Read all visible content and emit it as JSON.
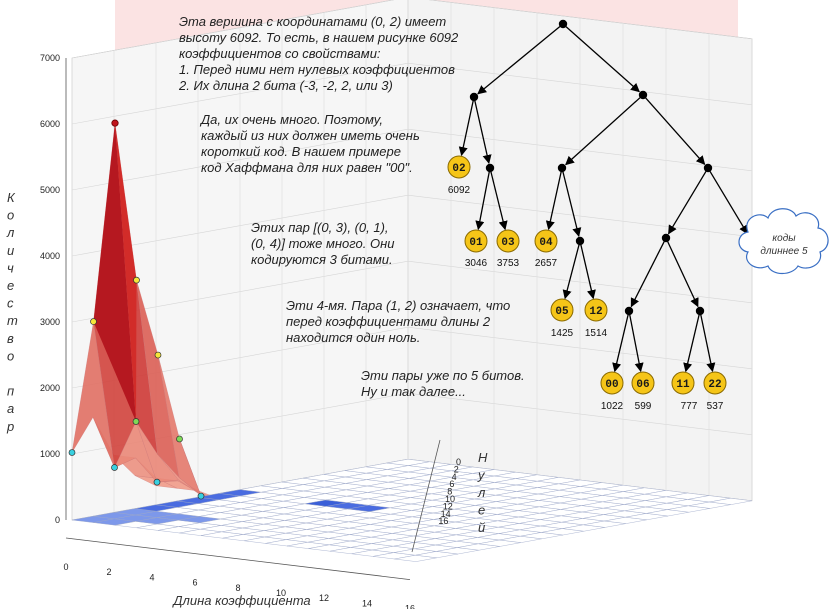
{
  "annotations": {
    "vertex": {
      "lines": [
        "Эта вершина с координатами (0, 2) имеет",
        "высоту 6092. То есть, в нашем рисунке 6092",
        "коэффициентов со свойствами:",
        "1. Перед ними нет нулевых коэффициентов",
        "2. Их длина 2 бита (-3, -2, 2, или 3)"
      ]
    },
    "many": {
      "lines": [
        "Да,   их   очень   много.   Поэтому,",
        "каждый из них должен иметь очень",
        "короткий  код.  В  нашем  примере",
        "код Хаффмана для них равен \"00\"."
      ]
    },
    "pairs": {
      "lines": [
        "Этих   пар  [(0,  3),  (0,  1),",
        "(0,  4)]  тоже  много.  Они",
        "кодируются 3 битами."
      ]
    },
    "four": {
      "lines": [
        "Эти 4-мя. Пара (1, 2) означает, что",
        "перед   коэффициентами   длины   2",
        "находится один ноль."
      ]
    },
    "five": {
      "lines": [
        "Эти пары уже по 5 битов.",
        "Ну и так далее..."
      ]
    }
  },
  "tree": {
    "leaves": [
      {
        "code": "02",
        "count": "6092"
      },
      {
        "code": "01",
        "count": "3046"
      },
      {
        "code": "03",
        "count": "3753"
      },
      {
        "code": "04",
        "count": "2657"
      },
      {
        "code": "05",
        "count": "1425"
      },
      {
        "code": "12",
        "count": "1514"
      },
      {
        "code": "00",
        "count": "1022"
      },
      {
        "code": "06",
        "count": "599"
      },
      {
        "code": "11",
        "count": "777"
      },
      {
        "code": "22",
        "count": "537"
      }
    ],
    "cloud": [
      "коды",
      "длиннее 5"
    ],
    "leaf_color": "#f5c518",
    "leaf_border": "#8a6a00"
  },
  "chart_data": {
    "type": "surface",
    "title": "",
    "zlabel_letters": [
      "К",
      "о",
      "л",
      "и",
      "ч",
      "е",
      "с",
      "т",
      "в",
      "о",
      "",
      "п",
      "а",
      "р"
    ],
    "xlabel": "Длина коэффициента",
    "ylabel_letters": [
      "Н",
      "у",
      "л",
      "е",
      "й"
    ],
    "z_ticks": [
      "0",
      "1000",
      "2000",
      "3000",
      "4000",
      "5000",
      "6000",
      "7000"
    ],
    "x_ticks": [
      "0",
      "2",
      "4",
      "6",
      "8",
      "10",
      "12",
      "14",
      "16"
    ],
    "y_ticks": [
      "0",
      "2",
      "4",
      "6",
      "8",
      "10",
      "12",
      "14",
      "16"
    ],
    "zlim": [
      0,
      7000
    ],
    "peak": {
      "zeros": 0,
      "length": 2,
      "value": 6092
    },
    "highlighted_points": [
      {
        "zeros": 0,
        "length": 1,
        "value": 3046
      },
      {
        "zeros": 0,
        "length": 3,
        "value": 3753
      },
      {
        "zeros": 0,
        "length": 4,
        "value": 2657
      },
      {
        "zeros": 1,
        "length": 2,
        "value": 1514
      },
      {
        "zeros": 0,
        "length": 5,
        "value": 1425
      },
      {
        "zeros": 1,
        "length": 1,
        "value": 777
      },
      {
        "zeros": 0,
        "length": 0,
        "value": 1022
      },
      {
        "zeros": 0,
        "length": 6,
        "value": 599
      },
      {
        "zeros": 2,
        "length": 2,
        "value": 537
      }
    ],
    "colors": {
      "peak": "#c0141c",
      "yellow": "#f5e53a",
      "green": "#7ed957",
      "cyan": "#38d0e0",
      "blue": "#3a5fd8"
    }
  }
}
